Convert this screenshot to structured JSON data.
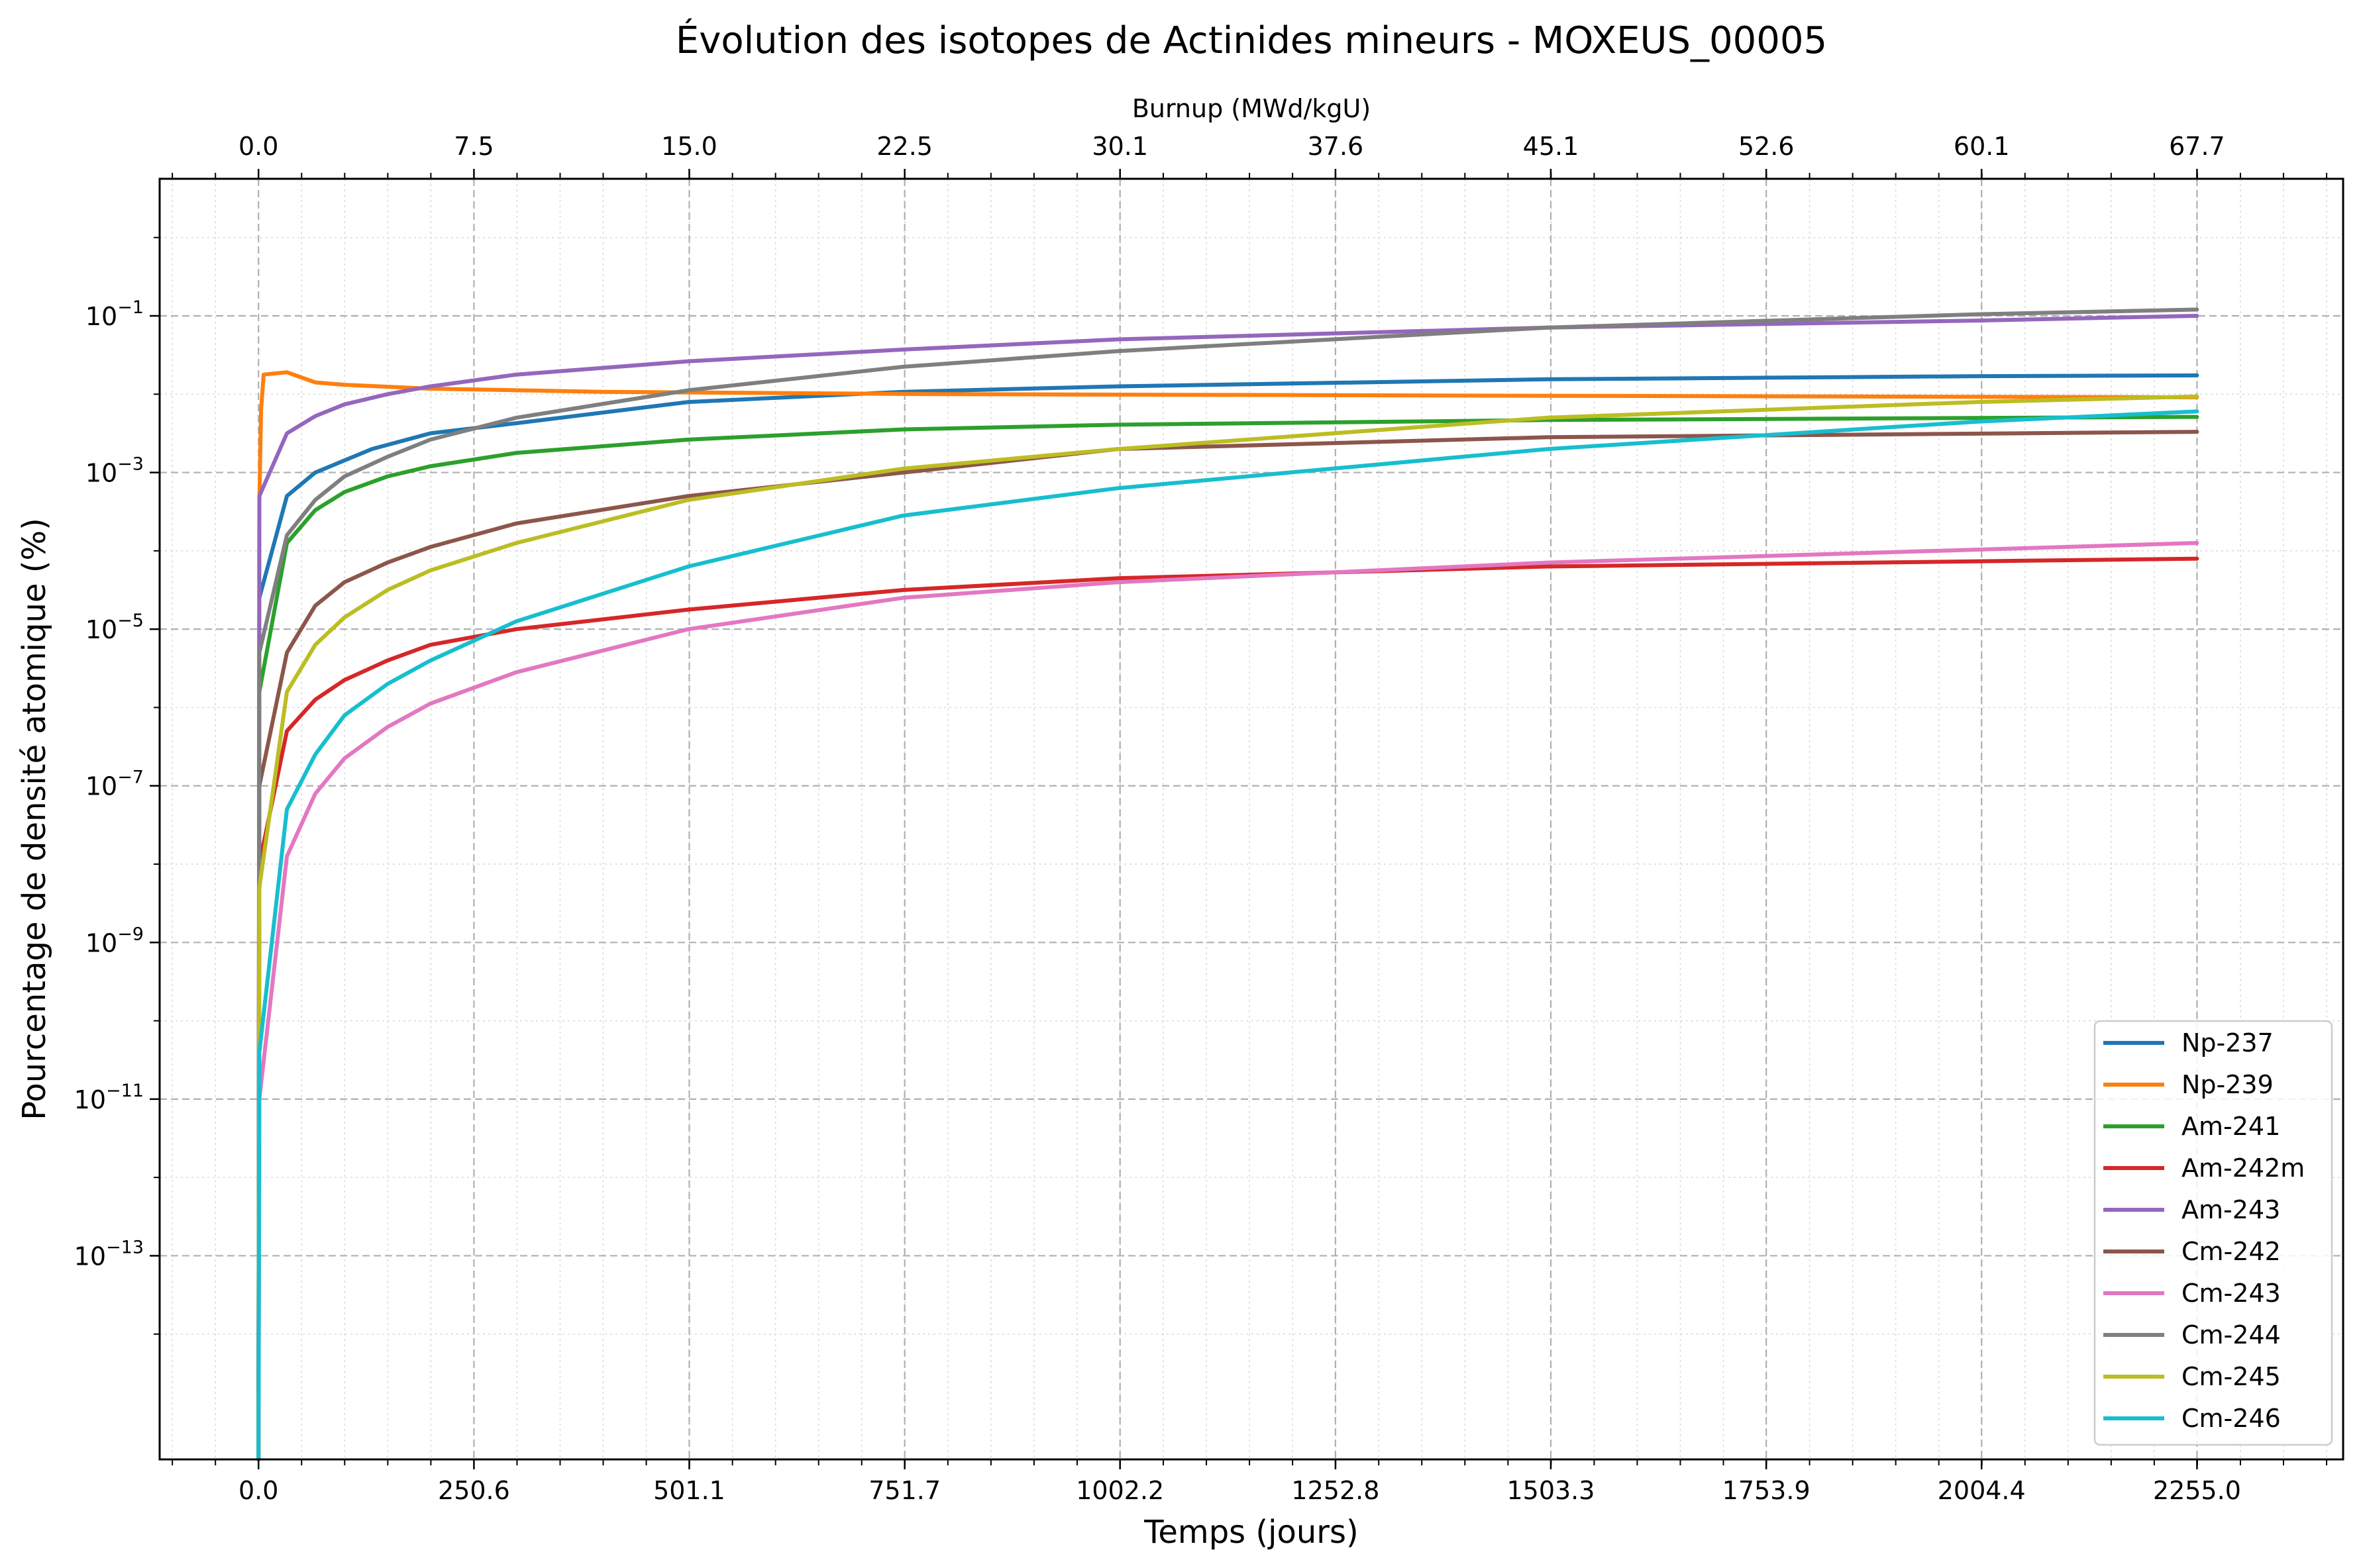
{
  "chart_data": {
    "type": "line",
    "title": "Évolution des isotopes de Actinides mineurs - MOXEUS_00005",
    "xlabel": "Temps (jours)",
    "ylabel": "Pourcentage de densité atomique (%)",
    "x2label": "Burnup (MWd/kgU)",
    "xlim": [
      -115,
      2425
    ],
    "ylim_exp": [
      -15.6,
      0.75
    ],
    "yscale": "log",
    "grid": true,
    "legend_position": "lower-right",
    "x_ticks": [
      "0.0",
      "250.6",
      "501.1",
      "751.7",
      "1002.2",
      "1252.8",
      "1503.3",
      "1753.9",
      "2004.4",
      "2255.0"
    ],
    "x2_ticks": [
      "0.0",
      "7.5",
      "15.0",
      "22.5",
      "30.1",
      "37.6",
      "45.1",
      "52.6",
      "60.1",
      "67.7"
    ],
    "y_ticks": [
      {
        "base": "10",
        "exp": "−1",
        "value": -1
      },
      {
        "base": "10",
        "exp": "−3",
        "value": -3
      },
      {
        "base": "10",
        "exp": "−5",
        "value": -5
      },
      {
        "base": "10",
        "exp": "−7",
        "value": -7
      },
      {
        "base": "10",
        "exp": "−9",
        "value": -9
      },
      {
        "base": "10",
        "exp": "−11",
        "value": -11
      },
      {
        "base": "10",
        "exp": "−13",
        "value": -13
      }
    ],
    "series": [
      {
        "name": "Np-237",
        "color": "#1f77b4",
        "points": [
          [
            0,
            -15.6
          ],
          [
            1,
            -4.6
          ],
          [
            33,
            -3.3
          ],
          [
            66,
            -3.0
          ],
          [
            132,
            -2.7
          ],
          [
            200,
            -2.5
          ],
          [
            300,
            -2.37
          ],
          [
            500,
            -2.1
          ],
          [
            750,
            -1.97
          ],
          [
            1000,
            -1.9
          ],
          [
            1500,
            -1.81
          ],
          [
            2000,
            -1.77
          ],
          [
            2255,
            -1.76
          ]
        ]
      },
      {
        "name": "Np-239",
        "color": "#ff7f0e",
        "points": [
          [
            0,
            -15.6
          ],
          [
            1,
            -3.4
          ],
          [
            3,
            -2.2
          ],
          [
            6,
            -1.75
          ],
          [
            33,
            -1.72
          ],
          [
            66,
            -1.85
          ],
          [
            100,
            -1.88
          ],
          [
            200,
            -1.93
          ],
          [
            400,
            -1.97
          ],
          [
            800,
            -2.0
          ],
          [
            1500,
            -2.02
          ],
          [
            2255,
            -2.04
          ]
        ]
      },
      {
        "name": "Am-241",
        "color": "#2ca02c",
        "points": [
          [
            0,
            -15.6
          ],
          [
            1,
            -5.8
          ],
          [
            33,
            -3.9
          ],
          [
            66,
            -3.48
          ],
          [
            100,
            -3.25
          ],
          [
            150,
            -3.05
          ],
          [
            200,
            -2.92
          ],
          [
            300,
            -2.75
          ],
          [
            500,
            -2.58
          ],
          [
            750,
            -2.45
          ],
          [
            1000,
            -2.39
          ],
          [
            1500,
            -2.33
          ],
          [
            2255,
            -2.29
          ]
        ]
      },
      {
        "name": "Am-242m",
        "color": "#d62728",
        "points": [
          [
            0,
            -15.6
          ],
          [
            1,
            -8.0
          ],
          [
            33,
            -6.3
          ],
          [
            66,
            -5.9
          ],
          [
            100,
            -5.65
          ],
          [
            150,
            -5.4
          ],
          [
            200,
            -5.2
          ],
          [
            300,
            -5.0
          ],
          [
            500,
            -4.75
          ],
          [
            750,
            -4.5
          ],
          [
            1000,
            -4.35
          ],
          [
            1500,
            -4.2
          ],
          [
            2255,
            -4.1
          ]
        ]
      },
      {
        "name": "Am-243",
        "color": "#9467bd",
        "points": [
          [
            0,
            -15.6
          ],
          [
            1,
            -3.3
          ],
          [
            33,
            -2.5
          ],
          [
            66,
            -2.28
          ],
          [
            100,
            -2.13
          ],
          [
            150,
            -2.0
          ],
          [
            200,
            -1.9
          ],
          [
            300,
            -1.75
          ],
          [
            500,
            -1.58
          ],
          [
            750,
            -1.43
          ],
          [
            1000,
            -1.3
          ],
          [
            1500,
            -1.15
          ],
          [
            2000,
            -1.06
          ],
          [
            2255,
            -1.0
          ]
        ]
      },
      {
        "name": "Cm-242",
        "color": "#8c564b",
        "points": [
          [
            0,
            -15.6
          ],
          [
            1,
            -7.0
          ],
          [
            33,
            -5.3
          ],
          [
            66,
            -4.7
          ],
          [
            100,
            -4.4
          ],
          [
            150,
            -4.15
          ],
          [
            200,
            -3.95
          ],
          [
            300,
            -3.65
          ],
          [
            500,
            -3.3
          ],
          [
            750,
            -3.0
          ],
          [
            1000,
            -2.7
          ],
          [
            1500,
            -2.55
          ],
          [
            2255,
            -2.48
          ]
        ]
      },
      {
        "name": "Cm-243",
        "color": "#e377c2",
        "points": [
          [
            0,
            -15.6
          ],
          [
            1,
            -11.0
          ],
          [
            33,
            -7.9
          ],
          [
            66,
            -7.1
          ],
          [
            100,
            -6.65
          ],
          [
            150,
            -6.25
          ],
          [
            200,
            -5.95
          ],
          [
            300,
            -5.55
          ],
          [
            500,
            -5.0
          ],
          [
            750,
            -4.6
          ],
          [
            1000,
            -4.4
          ],
          [
            1500,
            -4.15
          ],
          [
            2255,
            -3.9
          ]
        ]
      },
      {
        "name": "Cm-244",
        "color": "#7f7f7f",
        "points": [
          [
            0,
            -15.6
          ],
          [
            1,
            -5.3
          ],
          [
            33,
            -3.8
          ],
          [
            66,
            -3.35
          ],
          [
            100,
            -3.05
          ],
          [
            150,
            -2.8
          ],
          [
            200,
            -2.58
          ],
          [
            300,
            -2.3
          ],
          [
            500,
            -1.95
          ],
          [
            750,
            -1.65
          ],
          [
            1000,
            -1.45
          ],
          [
            1500,
            -1.15
          ],
          [
            2000,
            -0.98
          ],
          [
            2255,
            -0.92
          ]
        ]
      },
      {
        "name": "Cm-245",
        "color": "#bcbd22",
        "points": [
          [
            0,
            -15.6
          ],
          [
            1,
            -8.3
          ],
          [
            33,
            -5.8
          ],
          [
            66,
            -5.2
          ],
          [
            100,
            -4.85
          ],
          [
            150,
            -4.5
          ],
          [
            200,
            -4.25
          ],
          [
            300,
            -3.9
          ],
          [
            500,
            -3.35
          ],
          [
            750,
            -2.95
          ],
          [
            1000,
            -2.7
          ],
          [
            1500,
            -2.3
          ],
          [
            2000,
            -2.1
          ],
          [
            2255,
            -2.03
          ]
        ]
      },
      {
        "name": "Cm-246",
        "color": "#17becf",
        "points": [
          [
            0,
            -15.6
          ],
          [
            1,
            -10.4
          ],
          [
            33,
            -7.3
          ],
          [
            66,
            -6.6
          ],
          [
            100,
            -6.1
          ],
          [
            150,
            -5.7
          ],
          [
            200,
            -5.4
          ],
          [
            300,
            -4.9
          ],
          [
            500,
            -4.2
          ],
          [
            750,
            -3.55
          ],
          [
            1000,
            -3.2
          ],
          [
            1500,
            -2.7
          ],
          [
            2000,
            -2.35
          ],
          [
            2255,
            -2.22
          ]
        ]
      }
    ]
  }
}
